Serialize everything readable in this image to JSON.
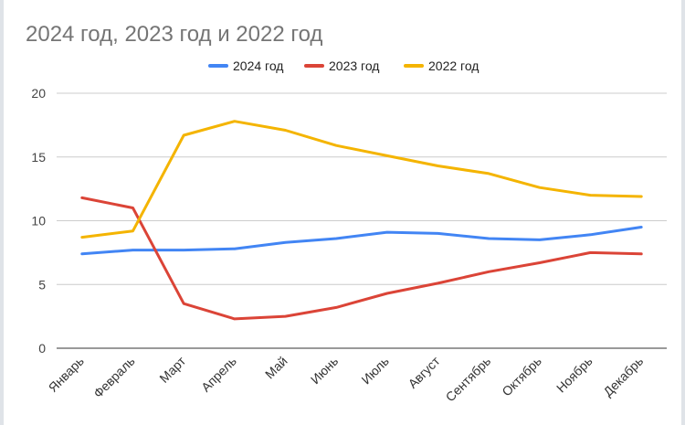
{
  "chart_data": {
    "type": "line",
    "title": "2024 год, 2023 год  и 2022 год",
    "xlabel": "",
    "ylabel": "",
    "ylim": [
      0,
      20
    ],
    "yticks": [
      0,
      5,
      10,
      15,
      20
    ],
    "grid": true,
    "legend_position": "top",
    "categories": [
      "Январь",
      "Февраль",
      "Март",
      "Апрель",
      "Май",
      "Июнь",
      "Июль",
      "Август",
      "Сентябрь",
      "Октябрь",
      "Ноябрь",
      "Декабрь"
    ],
    "series": [
      {
        "name": "2024 год",
        "color": "#4285f4",
        "values": [
          7.4,
          7.7,
          7.7,
          7.8,
          8.3,
          8.6,
          9.1,
          9.0,
          8.6,
          8.5,
          8.9,
          9.5
        ]
      },
      {
        "name": "2023 год",
        "color": "#db4437",
        "values": [
          11.8,
          11.0,
          3.5,
          2.3,
          2.5,
          3.2,
          4.3,
          5.1,
          6.0,
          6.7,
          7.5,
          7.4
        ]
      },
      {
        "name": "2022 год",
        "color": "#f4b400",
        "values": [
          8.7,
          9.2,
          16.7,
          17.8,
          17.1,
          15.9,
          15.1,
          14.3,
          13.7,
          12.6,
          12.0,
          11.9
        ]
      }
    ]
  }
}
